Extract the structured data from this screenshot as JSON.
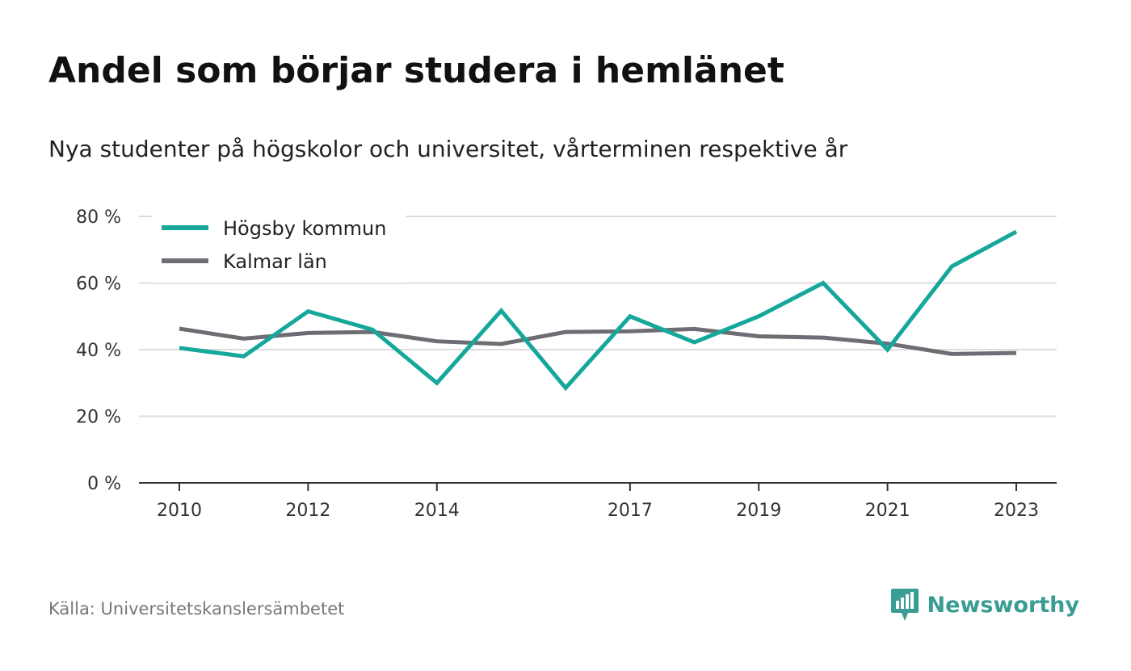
{
  "title": "Andel som börjar studera i hemlänet",
  "subtitle": "Nya studenter på högskolor och universitet, vårterminen respektive år",
  "source": "Källa: Universitetskanslersämbetet",
  "brand": {
    "name": "Newsworthy",
    "icon": "newsworthy-logo-icon",
    "color": "#3a9d94"
  },
  "chart_data": {
    "type": "line",
    "x": [
      2010,
      2011,
      2012,
      2013,
      2014,
      2015,
      2016,
      2017,
      2018,
      2019,
      2020,
      2021,
      2022,
      2023
    ],
    "x_tick_labels": [
      "2010",
      "2012",
      "2014",
      "2017",
      "2019",
      "2021",
      "2023"
    ],
    "x_tick_values": [
      2010,
      2012,
      2014,
      2017,
      2019,
      2021,
      2023
    ],
    "y_ticks": [
      0,
      20,
      40,
      60,
      80
    ],
    "y_tick_labels": [
      "0 %",
      "20 %",
      "40 %",
      "60 %",
      "80 %"
    ],
    "ylim": [
      0,
      80
    ],
    "xlim": [
      2010,
      2023
    ],
    "grid": true,
    "legend_position": "top-left",
    "series": [
      {
        "name": "Högsby kommun",
        "color": "#14a79a",
        "values": [
          40.5,
          38.0,
          51.5,
          46.0,
          30.0,
          51.7,
          28.5,
          50.0,
          42.2,
          50.0,
          60.0,
          40.0,
          65.0,
          75.4
        ]
      },
      {
        "name": "Kalmar län",
        "color": "#6e6d73",
        "values": [
          46.3,
          43.3,
          45.0,
          45.3,
          42.5,
          41.7,
          45.3,
          45.5,
          46.2,
          44.0,
          43.6,
          41.8,
          38.7,
          39.0
        ]
      }
    ]
  }
}
